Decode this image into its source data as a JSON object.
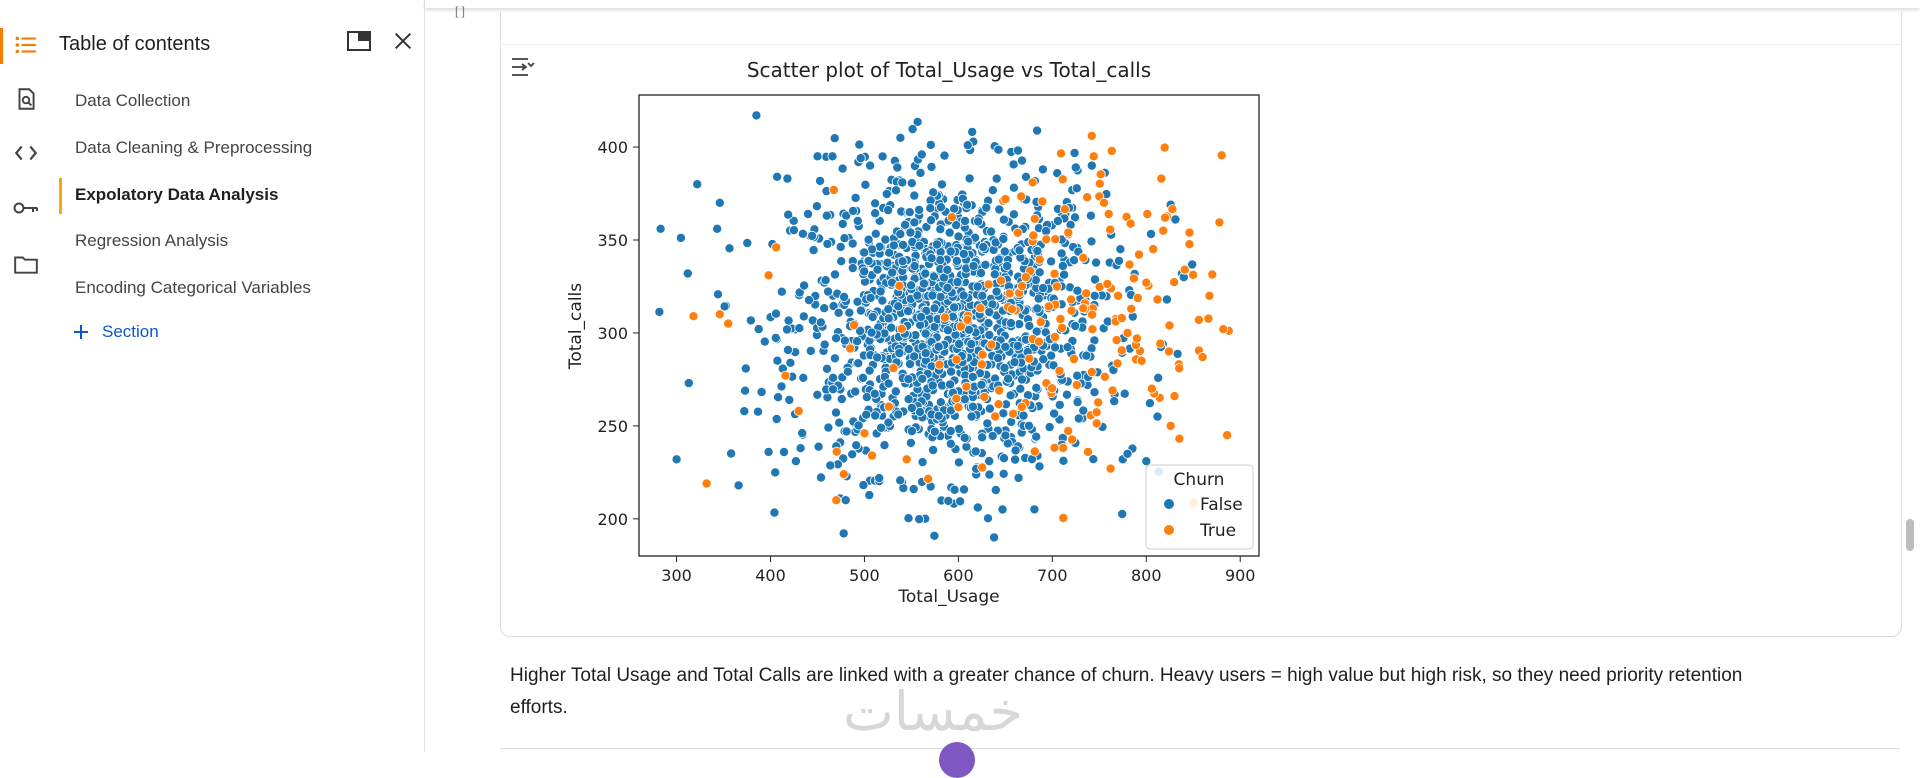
{
  "sidebar": {
    "title": "Table of contents",
    "items": [
      {
        "label": "Data Collection",
        "active": false
      },
      {
        "label": "Data Cleaning & Preprocessing",
        "active": false
      },
      {
        "label": "Expolatory Data Analysis",
        "active": true
      },
      {
        "label": "Regression Analysis",
        "active": false
      },
      {
        "label": "Encoding Categorical Variables",
        "active": false
      }
    ],
    "add_section_label": "Section",
    "rail_icons": [
      "toc-list-icon",
      "find-icon",
      "code-icon",
      "key-icon",
      "folder-icon"
    ]
  },
  "header_icons": [
    "popout-icon",
    "close-icon"
  ],
  "cell": {
    "bracket": "[ ]",
    "caption": "Higher Total Usage and Total Calls are linked with a greater chance of churn. Heavy users = high value but high risk, so they need priority retention efforts."
  },
  "watermark": "خمسات",
  "colors": {
    "accent_orange": "#f57c00",
    "active_marker": "#f9ab00",
    "link_blue": "#0b57d0",
    "false_series": "#1f77b4",
    "true_series": "#ff7f0e"
  },
  "chart_data": {
    "type": "scatter",
    "title": "Scatter plot of Total_Usage vs Total_calls",
    "xlabel": "Total_Usage",
    "ylabel": "Total_calls",
    "xlim": [
      260,
      920
    ],
    "ylim": [
      180,
      428
    ],
    "xticks": [
      300,
      400,
      500,
      600,
      700,
      800,
      900
    ],
    "yticks": [
      200,
      250,
      300,
      350,
      400
    ],
    "legend": {
      "title": "Churn",
      "placement": "lower-right"
    },
    "grid": false,
    "series": [
      {
        "name": "False",
        "color": "#1f77b4",
        "points": [
          [
            283,
            356
          ],
          [
            300,
            232
          ],
          [
            312,
            332
          ],
          [
            313,
            273
          ],
          [
            322,
            380
          ],
          [
            346,
            370
          ],
          [
            366,
            218
          ],
          [
            385,
            417
          ],
          [
            398,
            236
          ],
          [
            405,
            225
          ],
          [
            407,
            384
          ],
          [
            418,
            383
          ],
          [
            420,
            264
          ],
          [
            432,
            238
          ],
          [
            440,
            364
          ],
          [
            450,
            395
          ],
          [
            466,
            395
          ],
          [
            470,
            239
          ],
          [
            474,
            211
          ],
          [
            480,
            210
          ],
          [
            496,
            394
          ],
          [
            506,
            390
          ],
          [
            535,
            389
          ],
          [
            561,
            396
          ],
          [
            610,
            401
          ],
          [
            638,
            190
          ],
          [
            647,
            205
          ],
          [
            672,
            384
          ],
          [
            690,
            388
          ],
          [
            725,
            389
          ],
          [
            742,
            390
          ],
          [
            775,
            232
          ],
          [
            780,
            235
          ],
          [
            800,
            231
          ],
          [
            812,
            255
          ],
          [
            822,
            318
          ],
          [
            826,
            369
          ],
          [
            831,
            361
          ],
          [
            838,
            332
          ],
          [
            840,
            330
          ]
        ],
        "cluster": {
          "cx": 590,
          "cy": 305,
          "sx": 82,
          "sy": 40,
          "n": 1450
        }
      },
      {
        "name": "True",
        "color": "#ff7f0e",
        "points": [
          [
            318,
            309
          ],
          [
            332,
            219
          ],
          [
            355,
            305
          ],
          [
            346,
            310
          ],
          [
            398,
            331
          ],
          [
            406,
            346
          ],
          [
            416,
            277
          ],
          [
            430,
            258
          ],
          [
            470,
            210
          ],
          [
            478,
            224
          ],
          [
            500,
            246
          ],
          [
            508,
            234
          ],
          [
            545,
            232
          ],
          [
            600,
            260
          ],
          [
            625,
            283
          ],
          [
            650,
            372
          ],
          [
            679,
            381
          ],
          [
            705,
            325
          ],
          [
            720,
            318
          ],
          [
            723,
            286
          ],
          [
            726,
            272
          ],
          [
            738,
            236
          ],
          [
            742,
            406
          ],
          [
            744,
            395
          ],
          [
            755,
            370
          ],
          [
            760,
            364
          ],
          [
            762,
            227
          ],
          [
            770,
            320
          ],
          [
            774,
            308
          ],
          [
            780,
            300
          ],
          [
            784,
            313
          ],
          [
            790,
            297
          ],
          [
            795,
            285
          ],
          [
            800,
            327
          ],
          [
            806,
            270
          ],
          [
            812,
            318
          ],
          [
            816,
            383
          ],
          [
            818,
            355
          ],
          [
            820,
            362
          ],
          [
            826,
            250
          ],
          [
            830,
            266
          ],
          [
            835,
            281
          ],
          [
            841,
            334
          ],
          [
            846,
            354
          ],
          [
            856,
            307
          ],
          [
            860,
            287
          ],
          [
            882,
            302
          ],
          [
            886,
            245
          ],
          [
            737,
            373
          ],
          [
            717,
            354
          ]
        ],
        "cluster": {
          "cx": 700,
          "cy": 305,
          "sx": 90,
          "sy": 45,
          "n": 140
        }
      }
    ]
  }
}
